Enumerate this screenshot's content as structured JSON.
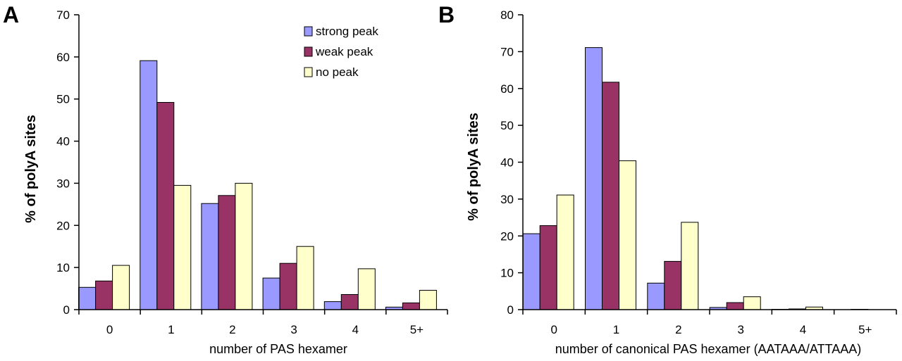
{
  "colors": {
    "strong": "#9999ff",
    "weak": "#993366",
    "none": "#ffffcc",
    "axis": "#000000"
  },
  "chart_data": [
    {
      "panel": "A",
      "type": "bar",
      "categories": [
        "0",
        "1",
        "2",
        "3",
        "4",
        "5+"
      ],
      "series": [
        {
          "name": "strong peak",
          "key": "strong",
          "values": [
            5.3,
            59.1,
            25.2,
            7.5,
            1.9,
            0.6
          ]
        },
        {
          "name": "weak peak",
          "key": "weak",
          "values": [
            6.8,
            49.2,
            27.1,
            11.0,
            3.6,
            1.6
          ]
        },
        {
          "name": "no peak",
          "key": "none",
          "values": [
            10.5,
            29.5,
            30.0,
            15.0,
            9.7,
            4.6
          ]
        }
      ],
      "xlabel": "number of PAS hexamer",
      "ylabel": "% of polyA sites",
      "ylim": [
        0,
        70
      ],
      "yticks": [
        0,
        10,
        20,
        30,
        40,
        50,
        60,
        70
      ],
      "legend": "top-center",
      "grid": false
    },
    {
      "panel": "B",
      "type": "bar",
      "categories": [
        "0",
        "1",
        "2",
        "3",
        "4",
        "5+"
      ],
      "series": [
        {
          "name": "strong peak",
          "key": "strong",
          "values": [
            20.6,
            71.1,
            7.2,
            0.6,
            0.1,
            0.0
          ]
        },
        {
          "name": "weak peak",
          "key": "weak",
          "values": [
            22.8,
            61.7,
            13.1,
            1.9,
            0.2,
            0.1
          ]
        },
        {
          "name": "no peak",
          "key": "none",
          "values": [
            31.1,
            40.4,
            23.7,
            3.5,
            0.7,
            0.0
          ]
        }
      ],
      "xlabel": "number of canonical PAS hexamer (AATAAA/ATTAAA)",
      "ylabel": "% of polyA sites",
      "ylim": [
        0,
        80
      ],
      "yticks": [
        0,
        10,
        20,
        30,
        40,
        50,
        60,
        70,
        80
      ],
      "grid": false
    }
  ]
}
